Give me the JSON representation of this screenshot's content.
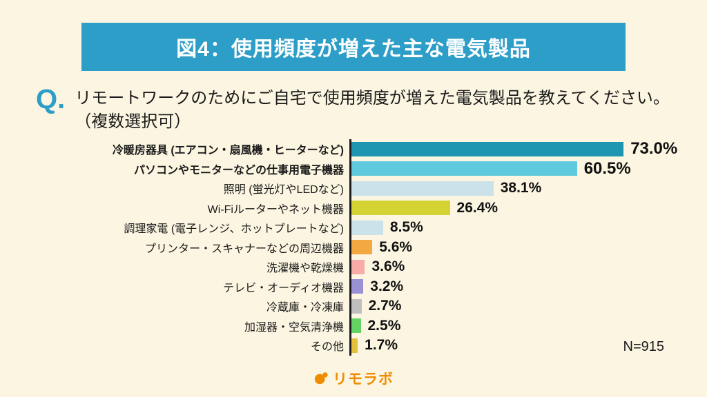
{
  "header": {
    "title": "図4：使用頻度が増えた主な電気製品"
  },
  "question": {
    "prefix": "Q.",
    "line1": "リモートワークのためにご自宅で使用頻度が増えた電気製品を教えてください。",
    "line2": "（複数選択可）"
  },
  "chart_data": {
    "type": "bar",
    "orientation": "horizontal",
    "title": "図4：使用頻度が増えた主な電気製品",
    "unit": "%",
    "xlim": [
      0,
      100
    ],
    "grid": false,
    "legend": "none",
    "categories": [
      "冷暖房器具 (エアコン・扇風機・ヒーターなど)",
      "パソコンやモニターなどの仕事用電子機器",
      "照明 (蛍光灯やLEDなど)",
      "Wi-Fiルーターやネット機器",
      "調理家電 (電子レンジ、ホットプレートなど)",
      "プリンター・スキャナーなどの周辺機器",
      "洗濯機や乾燥機",
      "テレビ・オーディオ機器",
      "冷蔵庫・冷凍庫",
      "加湿器・空気清浄機",
      "その他"
    ],
    "values": [
      73.0,
      60.5,
      38.1,
      26.4,
      8.5,
      5.6,
      3.6,
      3.2,
      2.7,
      2.5,
      1.7
    ],
    "value_labels": [
      "73.0%",
      "60.5%",
      "38.1%",
      "26.4%",
      "8.5%",
      "5.6%",
      "3.6%",
      "3.2%",
      "2.7%",
      "2.5%",
      "1.7%"
    ],
    "colors": [
      "#1e96b2",
      "#5fc9de",
      "#cce2ea",
      "#d5d334",
      "#cce2ea",
      "#f4a842",
      "#f9aba8",
      "#9a90d4",
      "#bfbfbf",
      "#63d363",
      "#e3c23a"
    ],
    "emphasized": [
      true,
      true,
      false,
      false,
      false,
      false,
      false,
      false,
      false,
      false,
      false
    ],
    "sample_size_label": "N=915"
  },
  "footer": {
    "logo_text": "リモラボ"
  },
  "theme": {
    "background": "#fbf5e1",
    "header_bg": "#2d9ec7",
    "accent_blue": "#2d9ec7",
    "logo_orange": "#f08c00",
    "text": "#1a1a1a"
  }
}
